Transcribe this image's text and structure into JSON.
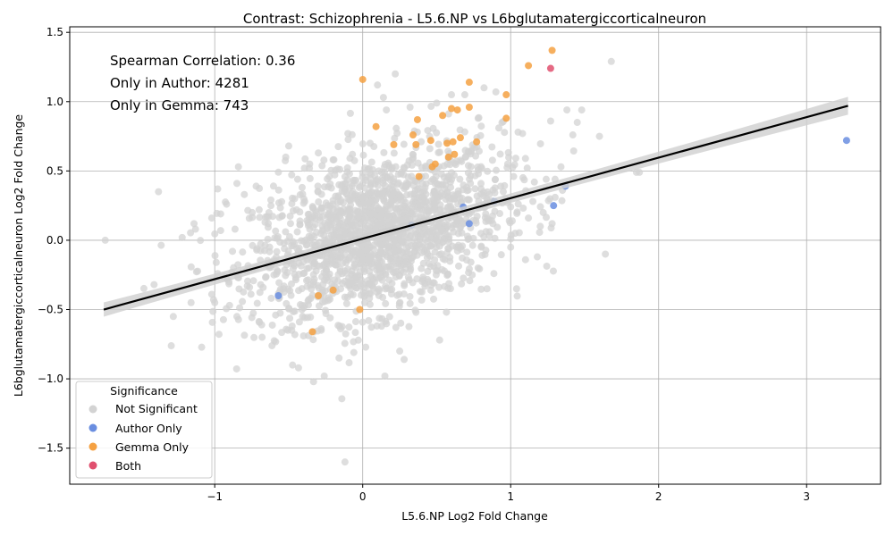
{
  "chart_data": {
    "type": "scatter",
    "title": "Contrast: Schizophrenia - L5.6.NP vs L6bglutamatergiccorticalneuron",
    "xlabel": "L5.6.NP Log2 Fold Change",
    "ylabel": "L6bglutamatergiccorticalneuron Log2 Fold Change",
    "xlim": [
      -1.98,
      3.5
    ],
    "ylim": [
      -1.76,
      1.54
    ],
    "xticks": [
      -1,
      0,
      1,
      2,
      3
    ],
    "yticks": [
      -1.5,
      -1.0,
      -0.5,
      0.0,
      0.5,
      1.0,
      1.5
    ],
    "xtick_labels": [
      "−1",
      "0",
      "1",
      "2",
      "3"
    ],
    "ytick_labels": [
      "−1.5",
      "−1.0",
      "−0.5",
      "0.0",
      "0.5",
      "1.0",
      "1.5"
    ],
    "grid": true,
    "annotations": [
      "Spearman Correlation: 0.36",
      "Only in Author: 4281",
      "Only in Gemma: 743"
    ],
    "legend": {
      "title": "Significance",
      "placement": "lower-left",
      "entries": [
        {
          "label": "Not Significant",
          "color": "#d3d3d3"
        },
        {
          "label": "Author Only",
          "color": "#6a8ee0"
        },
        {
          "label": "Gemma Only",
          "color": "#f5a142"
        },
        {
          "label": "Both",
          "color": "#e0506f"
        }
      ]
    },
    "regression_line": {
      "x": [
        -1.75,
        3.28
      ],
      "y": [
        -0.5,
        0.97
      ],
      "color": "#000000"
    },
    "background_cloud": {
      "series": "Not Significant",
      "center": [
        0.1,
        0.05
      ],
      "spread": [
        0.42,
        0.28
      ]
    },
    "series": [
      {
        "name": "Not Significant",
        "color": "#d3d3d3",
        "points": [
          [
            -1.74,
            0.0
          ],
          [
            -1.38,
            0.35
          ],
          [
            -1.41,
            -0.32
          ],
          [
            -1.28,
            -0.55
          ],
          [
            -1.22,
            0.02
          ],
          [
            -1.16,
            -0.45
          ],
          [
            -1.14,
            0.12
          ],
          [
            -1.13,
            0.08
          ],
          [
            -1.02,
            0.16
          ],
          [
            -0.98,
            0.37
          ],
          [
            -0.96,
            0.07
          ],
          [
            -0.96,
            0.19
          ],
          [
            -0.99,
            -0.16
          ],
          [
            -1.0,
            -0.45
          ],
          [
            -1.02,
            -0.39
          ],
          [
            -0.9,
            -0.47
          ],
          [
            -0.85,
            0.41
          ],
          [
            -0.84,
            0.53
          ],
          [
            -0.85,
            -0.55
          ],
          [
            -0.8,
            0.33
          ],
          [
            -0.72,
            0.39
          ],
          [
            -0.66,
            0.13
          ],
          [
            -0.68,
            -0.7
          ],
          [
            -0.56,
            -0.37
          ],
          [
            -0.52,
            0.6
          ],
          [
            -0.5,
            0.68
          ],
          [
            -0.48,
            -0.65
          ],
          [
            -0.4,
            -0.69
          ],
          [
            -0.3,
            0.63
          ],
          [
            -0.26,
            -0.98
          ],
          [
            -0.16,
            -0.85
          ],
          [
            -0.12,
            -1.6
          ],
          [
            -0.1,
            0.77
          ],
          [
            -0.06,
            -0.81
          ],
          [
            0.05,
            0.7
          ],
          [
            0.1,
            1.12
          ],
          [
            0.14,
            1.03
          ],
          [
            0.16,
            0.94
          ],
          [
            0.22,
            1.2
          ],
          [
            0.15,
            -0.98
          ],
          [
            0.25,
            -0.8
          ],
          [
            0.28,
            -0.86
          ],
          [
            0.32,
            0.96
          ],
          [
            0.52,
            -0.72
          ],
          [
            0.5,
            0.99
          ],
          [
            0.6,
            1.05
          ],
          [
            0.69,
            1.05
          ],
          [
            0.78,
            0.88
          ],
          [
            0.82,
            1.1
          ],
          [
            0.9,
            1.07
          ],
          [
            0.92,
            0.81
          ],
          [
            1.02,
            0.46
          ],
          [
            1.05,
            0.78
          ],
          [
            1.08,
            0.77
          ],
          [
            1.1,
            0.59
          ],
          [
            1.12,
            0.16
          ],
          [
            1.15,
            0.28
          ],
          [
            1.18,
            -0.12
          ],
          [
            1.22,
            0.2
          ],
          [
            1.24,
            0.44
          ],
          [
            1.27,
            0.86
          ],
          [
            1.3,
            0.44
          ],
          [
            1.34,
            0.53
          ],
          [
            1.38,
            0.94
          ],
          [
            1.42,
            0.76
          ],
          [
            1.45,
            0.85
          ],
          [
            1.48,
            0.94
          ],
          [
            1.6,
            0.75
          ],
          [
            1.64,
            -0.1
          ],
          [
            1.68,
            1.29
          ],
          [
            1.85,
            0.49
          ],
          [
            1.87,
            0.49
          ],
          [
            0.95,
            0.35
          ],
          [
            0.88,
            0.12
          ],
          [
            0.84,
            -0.35
          ],
          [
            0.78,
            -0.2
          ],
          [
            0.74,
            -0.25
          ],
          [
            0.7,
            0.15
          ],
          [
            0.66,
            -0.05
          ],
          [
            0.62,
            0.3
          ],
          [
            1.04,
            -0.35
          ],
          [
            1.03,
            0.05
          ],
          [
            0.98,
            0.55
          ],
          [
            1.2,
            0.1
          ],
          [
            1.0,
            -0.05
          ],
          [
            1.28,
            0.12
          ],
          [
            1.35,
            0.36
          ],
          [
            1.16,
            0.42
          ],
          [
            -0.6,
            -0.25
          ],
          [
            -0.7,
            0.22
          ],
          [
            -0.88,
            -0.08
          ],
          [
            -0.92,
            0.26
          ],
          [
            -0.78,
            -0.33
          ],
          [
            -0.62,
            0.25
          ],
          [
            -0.44,
            0.44
          ],
          [
            -0.36,
            0.52
          ],
          [
            -0.22,
            -0.56
          ],
          [
            -0.2,
            0.58
          ],
          [
            0.04,
            -0.58
          ],
          [
            0.36,
            -0.52
          ]
        ]
      },
      {
        "name": "Author Only",
        "color": "#6a8ee0",
        "points": [
          [
            3.27,
            0.72
          ],
          [
            1.37,
            0.39
          ],
          [
            1.29,
            0.25
          ],
          [
            0.72,
            0.12
          ],
          [
            0.68,
            0.24
          ],
          [
            0.89,
            0.28
          ],
          [
            -0.57,
            -0.4
          ],
          [
            0.33,
            0.11
          ]
        ]
      },
      {
        "name": "Gemma Only",
        "color": "#f5a142",
        "points": [
          [
            1.28,
            1.37
          ],
          [
            1.12,
            1.26
          ],
          [
            0.72,
            1.14
          ],
          [
            0.0,
            1.16
          ],
          [
            0.97,
            1.05
          ],
          [
            0.72,
            0.96
          ],
          [
            0.64,
            0.94
          ],
          [
            0.6,
            0.95
          ],
          [
            0.54,
            0.9
          ],
          [
            0.97,
            0.88
          ],
          [
            0.37,
            0.87
          ],
          [
            0.09,
            0.82
          ],
          [
            0.34,
            0.76
          ],
          [
            0.66,
            0.74
          ],
          [
            0.61,
            0.71
          ],
          [
            0.77,
            0.71
          ],
          [
            0.36,
            0.69
          ],
          [
            0.21,
            0.69
          ],
          [
            0.58,
            0.6
          ],
          [
            0.57,
            0.7
          ],
          [
            0.62,
            0.62
          ],
          [
            0.49,
            0.55
          ],
          [
            0.47,
            0.53
          ],
          [
            0.38,
            0.46
          ],
          [
            -0.34,
            -0.66
          ],
          [
            -0.3,
            -0.4
          ],
          [
            -0.02,
            -0.5
          ],
          [
            -0.2,
            -0.36
          ],
          [
            0.46,
            0.72
          ]
        ]
      },
      {
        "name": "Both",
        "color": "#e0506f",
        "points": [
          [
            1.27,
            1.24
          ]
        ]
      }
    ]
  }
}
